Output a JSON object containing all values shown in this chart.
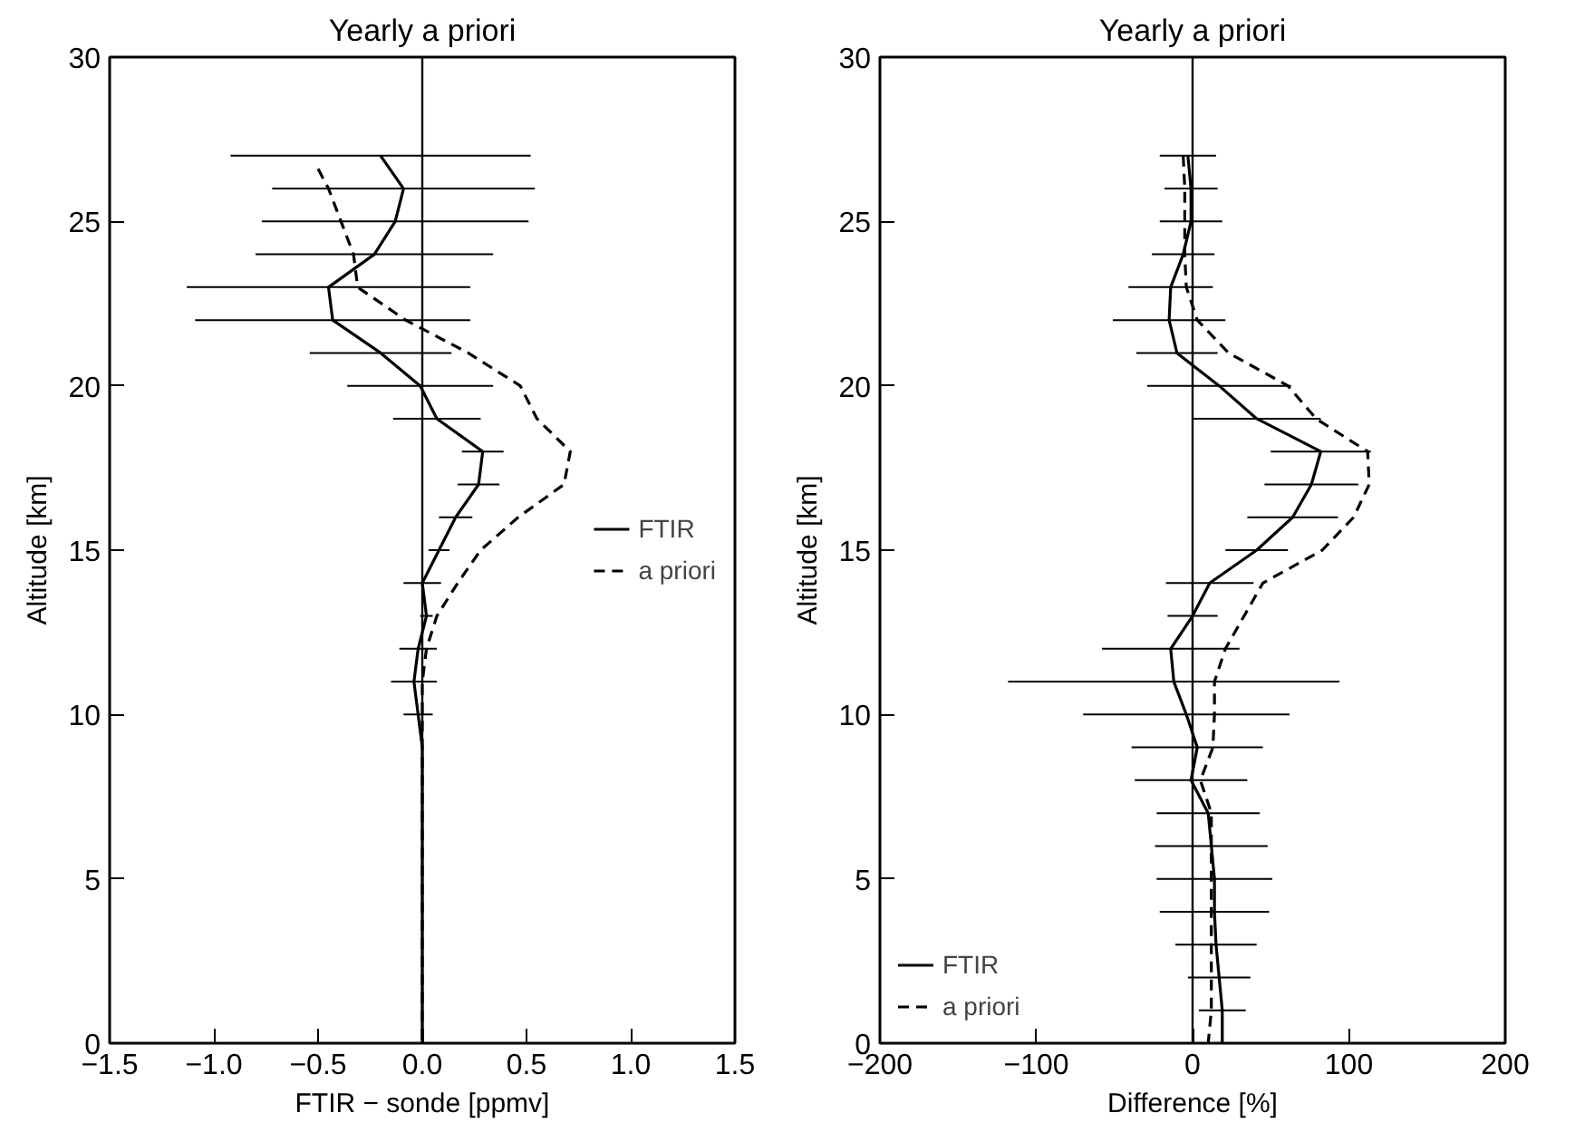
{
  "chart_data": [
    {
      "type": "line",
      "title": "Yearly a priori",
      "xlabel": "FTIR − sonde [ppmv]",
      "ylabel": "Altitude [km]",
      "xlim": [
        -1.5,
        1.5
      ],
      "xticks": [
        {
          "value": -1.5,
          "label": "−1.5"
        },
        {
          "value": -1.0,
          "label": "−1.0"
        },
        {
          "value": -0.5,
          "label": "−0.5"
        },
        {
          "value": 0.0,
          "label": "0.0"
        },
        {
          "value": 0.5,
          "label": "0.5"
        },
        {
          "value": 1.0,
          "label": "1.0"
        },
        {
          "value": 1.5,
          "label": "1.5"
        }
      ],
      "ylim": [
        0,
        30
      ],
      "yticks": [
        0,
        5,
        10,
        15,
        20,
        25,
        30
      ],
      "legend": "right",
      "grid": false,
      "ref_lines": [
        {
          "axis": "x",
          "value": 0,
          "color": "#000000"
        }
      ],
      "series": [
        {
          "name": "FTIR",
          "color": "#000000",
          "line_style": "solid",
          "x": [
            -0.2,
            -0.09,
            -0.13,
            -0.23,
            -0.45,
            -0.43,
            -0.2,
            -0.01,
            0.07,
            0.29,
            0.27,
            0.16,
            0.08,
            0.0,
            0.02,
            -0.02,
            -0.04,
            -0.02,
            0,
            0,
            0,
            0,
            0,
            0,
            0,
            0,
            0,
            0
          ],
          "values": [
            27,
            26,
            25,
            24,
            23,
            22,
            21,
            20,
            19,
            18,
            17,
            16,
            15,
            14,
            13,
            12,
            11,
            10,
            9,
            8,
            7,
            6,
            5,
            4,
            3,
            2,
            1,
            0
          ],
          "xerrors": [
            0.72,
            0.63,
            0.64,
            0.57,
            0.68,
            0.66,
            0.34,
            0.35,
            0.21,
            0.1,
            0.1,
            0.08,
            0.05,
            0.09,
            0.03,
            0.09,
            0.11,
            0.07,
            null,
            null,
            null,
            null,
            null,
            null,
            null,
            null,
            null,
            null
          ]
        },
        {
          "name": "a priori",
          "color": "#000000",
          "line_style": "dashed",
          "x": [
            -0.5,
            -0.45,
            -0.39,
            -0.33,
            -0.31,
            -0.08,
            0.22,
            0.47,
            0.55,
            0.71,
            0.68,
            0.46,
            0.28,
            0.17,
            0.07,
            0.02,
            0,
            0,
            0,
            0,
            0,
            0,
            0,
            0,
            0,
            0,
            0,
            0
          ],
          "values": [
            26.6,
            26,
            25,
            24,
            23,
            22,
            21,
            20,
            19,
            18,
            17,
            16,
            15,
            14,
            13,
            12,
            11,
            10,
            9,
            8,
            7,
            6,
            5,
            4,
            3,
            2,
            1,
            0
          ]
        }
      ]
    },
    {
      "type": "line",
      "title": "Yearly a priori",
      "xlabel": "Difference [%]",
      "ylabel": "Altitude [km]",
      "xlim": [
        -200,
        200
      ],
      "xticks": [
        {
          "value": -200,
          "label": "−200"
        },
        {
          "value": -100,
          "label": "−100"
        },
        0,
        100,
        200
      ],
      "ylim": [
        0,
        30
      ],
      "yticks": [
        0,
        5,
        10,
        15,
        20,
        25,
        30
      ],
      "legend": "bottom left",
      "grid": false,
      "ref_lines": [
        {
          "axis": "x",
          "value": 0,
          "color": "#000000"
        }
      ],
      "series": [
        {
          "name": "FTIR",
          "color": "#000000",
          "line_style": "solid",
          "x": [
            -3,
            -1,
            -1,
            -6,
            -14,
            -15,
            -10,
            17,
            41,
            82,
            76,
            64,
            41,
            11,
            0,
            -14,
            -12,
            -4,
            3,
            -1,
            10,
            12,
            14,
            14,
            15,
            17,
            19,
            19
          ],
          "values": [
            27,
            26,
            25,
            24,
            23,
            22,
            21,
            20,
            19,
            18,
            17,
            16,
            15,
            14,
            13,
            12,
            11,
            10,
            9,
            8,
            7,
            6,
            5,
            4,
            3,
            2,
            1,
            0
          ],
          "xerrors": [
            18,
            17,
            20,
            20,
            27,
            36,
            26,
            46,
            41,
            32,
            30,
            29,
            20,
            28,
            16,
            44,
            106,
            66,
            42,
            36,
            33,
            36,
            37,
            35,
            26,
            20,
            15,
            null
          ]
        },
        {
          "name": "a priori",
          "color": "#000000",
          "line_style": "dashed",
          "x": [
            -6,
            -5,
            -5,
            -5,
            -4,
            3,
            23,
            61,
            79,
            112,
            113,
            103,
            83,
            45,
            33,
            21,
            14,
            14,
            13,
            5,
            12,
            12,
            12,
            12,
            12,
            12,
            12,
            10
          ],
          "values": [
            27,
            26,
            25,
            24,
            23,
            22,
            21,
            20,
            19,
            18,
            17,
            16,
            15,
            14,
            13,
            12,
            11,
            10,
            9,
            8,
            7,
            6,
            5,
            4,
            3,
            2,
            1,
            0
          ]
        }
      ]
    }
  ]
}
